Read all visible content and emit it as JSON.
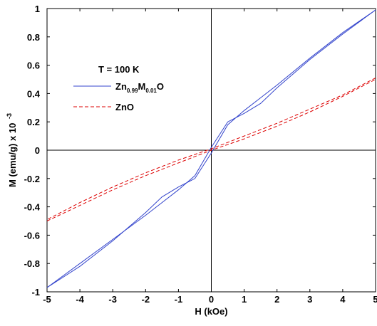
{
  "chart_data": {
    "type": "line",
    "xlabel": "H (kOe)",
    "ylabel": "M (emu/g) x 10",
    "ylabel_exponent": "-3",
    "xlim": [
      -5,
      5
    ],
    "ylim": [
      -1,
      1
    ],
    "x_ticks": [
      -5,
      -4,
      -3,
      -2,
      -1,
      0,
      1,
      2,
      3,
      4,
      5
    ],
    "y_ticks": [
      -1,
      -0.8,
      -0.6,
      -0.4,
      -0.2,
      0,
      0.2,
      0.4,
      0.6,
      0.8,
      1
    ],
    "grid": false,
    "zero_lines": true,
    "legend": {
      "title": "T = 100 K",
      "position": "upper-left",
      "entries": [
        {
          "base": "Zn",
          "sub1": "0.99",
          "mid": "M",
          "sub2": "0.01",
          "end": "O",
          "color": "#3344cc",
          "style": "solid"
        },
        {
          "text": "ZnO",
          "color": "#dd0000",
          "style": "dashed"
        }
      ]
    },
    "series": [
      {
        "color": "#3344cc",
        "style": "solid",
        "branch_up": {
          "x": [
            -5,
            -4,
            -3,
            -2,
            -1.5,
            -1,
            -0.5,
            0,
            0.5,
            1,
            1.5,
            2,
            3,
            4,
            5
          ],
          "y": [
            -0.97,
            -0.8,
            -0.63,
            -0.46,
            -0.37,
            -0.28,
            -0.18,
            0.02,
            0.2,
            0.26,
            0.33,
            0.44,
            0.64,
            0.82,
            0.99
          ]
        },
        "branch_down": {
          "x": [
            5,
            4,
            3,
            2,
            1.5,
            1,
            0.5,
            0,
            -0.5,
            -1,
            -1.5,
            -2,
            -3,
            -4,
            -5
          ],
          "y": [
            0.99,
            0.83,
            0.65,
            0.46,
            0.37,
            0.28,
            0.18,
            -0.02,
            -0.2,
            -0.26,
            -0.33,
            -0.44,
            -0.64,
            -0.82,
            -0.97
          ]
        }
      },
      {
        "color": "#dd0000",
        "style": "dashed",
        "branch_up": {
          "x": [
            -5,
            -4,
            -3,
            -2,
            -1,
            0,
            1,
            2,
            3,
            4,
            5
          ],
          "y": [
            -0.5,
            -0.39,
            -0.28,
            -0.18,
            -0.09,
            0.0,
            0.08,
            0.17,
            0.27,
            0.38,
            0.5
          ]
        },
        "branch_down": {
          "x": [
            5,
            4,
            3,
            2,
            1,
            0,
            -1,
            -2,
            -3,
            -4,
            -5
          ],
          "y": [
            0.51,
            0.39,
            0.29,
            0.19,
            0.1,
            0.01,
            -0.07,
            -0.16,
            -0.26,
            -0.37,
            -0.49
          ]
        }
      }
    ]
  }
}
